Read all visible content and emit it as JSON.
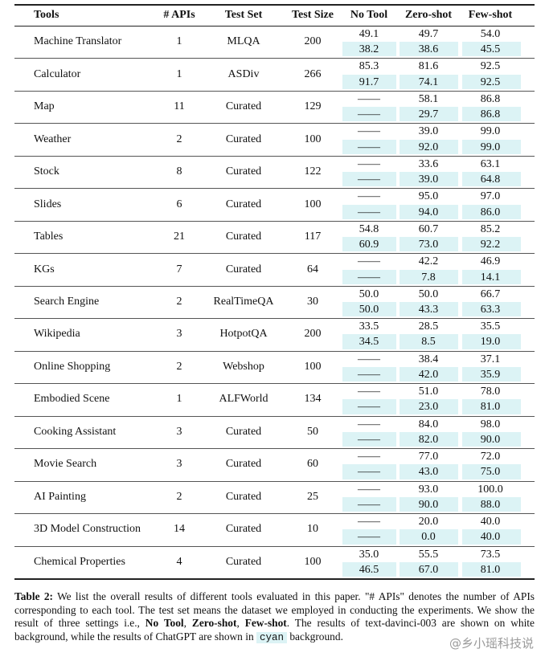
{
  "table": {
    "header": [
      "Tools",
      "# APIs",
      "Test Set",
      "Test Size",
      "No Tool",
      "Zero-shot",
      "Few-shot"
    ],
    "rows": [
      [
        "Machine Translator",
        "1",
        "MLQA",
        "200",
        [
          "49.1",
          "38.2"
        ],
        [
          "49.7",
          "38.6"
        ],
        [
          "54.0",
          "45.5"
        ]
      ],
      [
        "Calculator",
        "1",
        "ASDiv",
        "266",
        [
          "85.3",
          "91.7"
        ],
        [
          "81.6",
          "74.1"
        ],
        [
          "92.5",
          "92.5"
        ]
      ],
      [
        "Map",
        "11",
        "Curated",
        "129",
        [
          "——",
          "——"
        ],
        [
          "58.1",
          "29.7"
        ],
        [
          "86.8",
          "86.8"
        ]
      ],
      [
        "Weather",
        "2",
        "Curated",
        "100",
        [
          "——",
          "——"
        ],
        [
          "39.0",
          "92.0"
        ],
        [
          "99.0",
          "99.0"
        ]
      ],
      [
        "Stock",
        "8",
        "Curated",
        "122",
        [
          "——",
          "——"
        ],
        [
          "33.6",
          "39.0"
        ],
        [
          "63.1",
          "64.8"
        ]
      ],
      [
        "Slides",
        "6",
        "Curated",
        "100",
        [
          "——",
          "——"
        ],
        [
          "95.0",
          "94.0"
        ],
        [
          "97.0",
          "86.0"
        ]
      ],
      [
        "Tables",
        "21",
        "Curated",
        "117",
        [
          "54.8",
          "60.9"
        ],
        [
          "60.7",
          "73.0"
        ],
        [
          "85.2",
          "92.2"
        ]
      ],
      [
        "KGs",
        "7",
        "Curated",
        "64",
        [
          "——",
          "——"
        ],
        [
          "42.2",
          "7.8"
        ],
        [
          "46.9",
          "14.1"
        ]
      ],
      [
        "Search Engine",
        "2",
        "RealTimeQA",
        "30",
        [
          "50.0",
          "50.0"
        ],
        [
          "50.0",
          "43.3"
        ],
        [
          "66.7",
          "63.3"
        ]
      ],
      [
        "Wikipedia",
        "3",
        "HotpotQA",
        "200",
        [
          "33.5",
          "34.5"
        ],
        [
          "28.5",
          "8.5"
        ],
        [
          "35.5",
          "19.0"
        ]
      ],
      [
        "Online Shopping",
        "2",
        "Webshop",
        "100",
        [
          "——",
          "——"
        ],
        [
          "38.4",
          "42.0"
        ],
        [
          "37.1",
          "35.9"
        ]
      ],
      [
        "Embodied Scene",
        "1",
        "ALFWorld",
        "134",
        [
          "——",
          "——"
        ],
        [
          "51.0",
          "23.0"
        ],
        [
          "78.0",
          "81.0"
        ]
      ],
      [
        "Cooking Assistant",
        "3",
        "Curated",
        "50",
        [
          "——",
          "——"
        ],
        [
          "84.0",
          "82.0"
        ],
        [
          "98.0",
          "90.0"
        ]
      ],
      [
        "Movie Search",
        "3",
        "Curated",
        "60",
        [
          "——",
          "——"
        ],
        [
          "77.0",
          "43.0"
        ],
        [
          "72.0",
          "75.0"
        ]
      ],
      [
        "AI Painting",
        "2",
        "Curated",
        "25",
        [
          "——",
          "——"
        ],
        [
          "93.0",
          "90.0"
        ],
        [
          "100.0",
          "88.0"
        ]
      ],
      [
        "3D Model Construction",
        "14",
        "Curated",
        "10",
        [
          "——",
          "——"
        ],
        [
          "20.0",
          "0.0"
        ],
        [
          "40.0",
          "40.0"
        ]
      ],
      [
        "Chemical Properties",
        "4",
        "Curated",
        "100",
        [
          "35.0",
          "46.5"
        ],
        [
          "55.5",
          "67.0"
        ],
        [
          "73.5",
          "81.0"
        ]
      ]
    ]
  },
  "caption": {
    "parts": [
      {
        "text": "Table 2:",
        "bold": true
      },
      {
        "text": " We list the overall results of different tools evaluated in this paper. \"# APIs\" denotes the number of APIs corresponding to each tool. The test set means the dataset we employed in conducting the experiments. We show the result of three settings i.e., "
      },
      {
        "text": "No Tool",
        "bold": true
      },
      {
        "text": ", "
      },
      {
        "text": "Zero-shot",
        "bold": true
      },
      {
        "text": ", "
      },
      {
        "text": "Few-shot",
        "bold": true
      },
      {
        "text": ". The results of text-davinci-003 are shown on white background, while the results of ChatGPT are shown in "
      },
      {
        "text": "cyan",
        "highlight": true
      },
      {
        "text": " background."
      }
    ]
  },
  "watermark": "@乡小瑶科技说"
}
